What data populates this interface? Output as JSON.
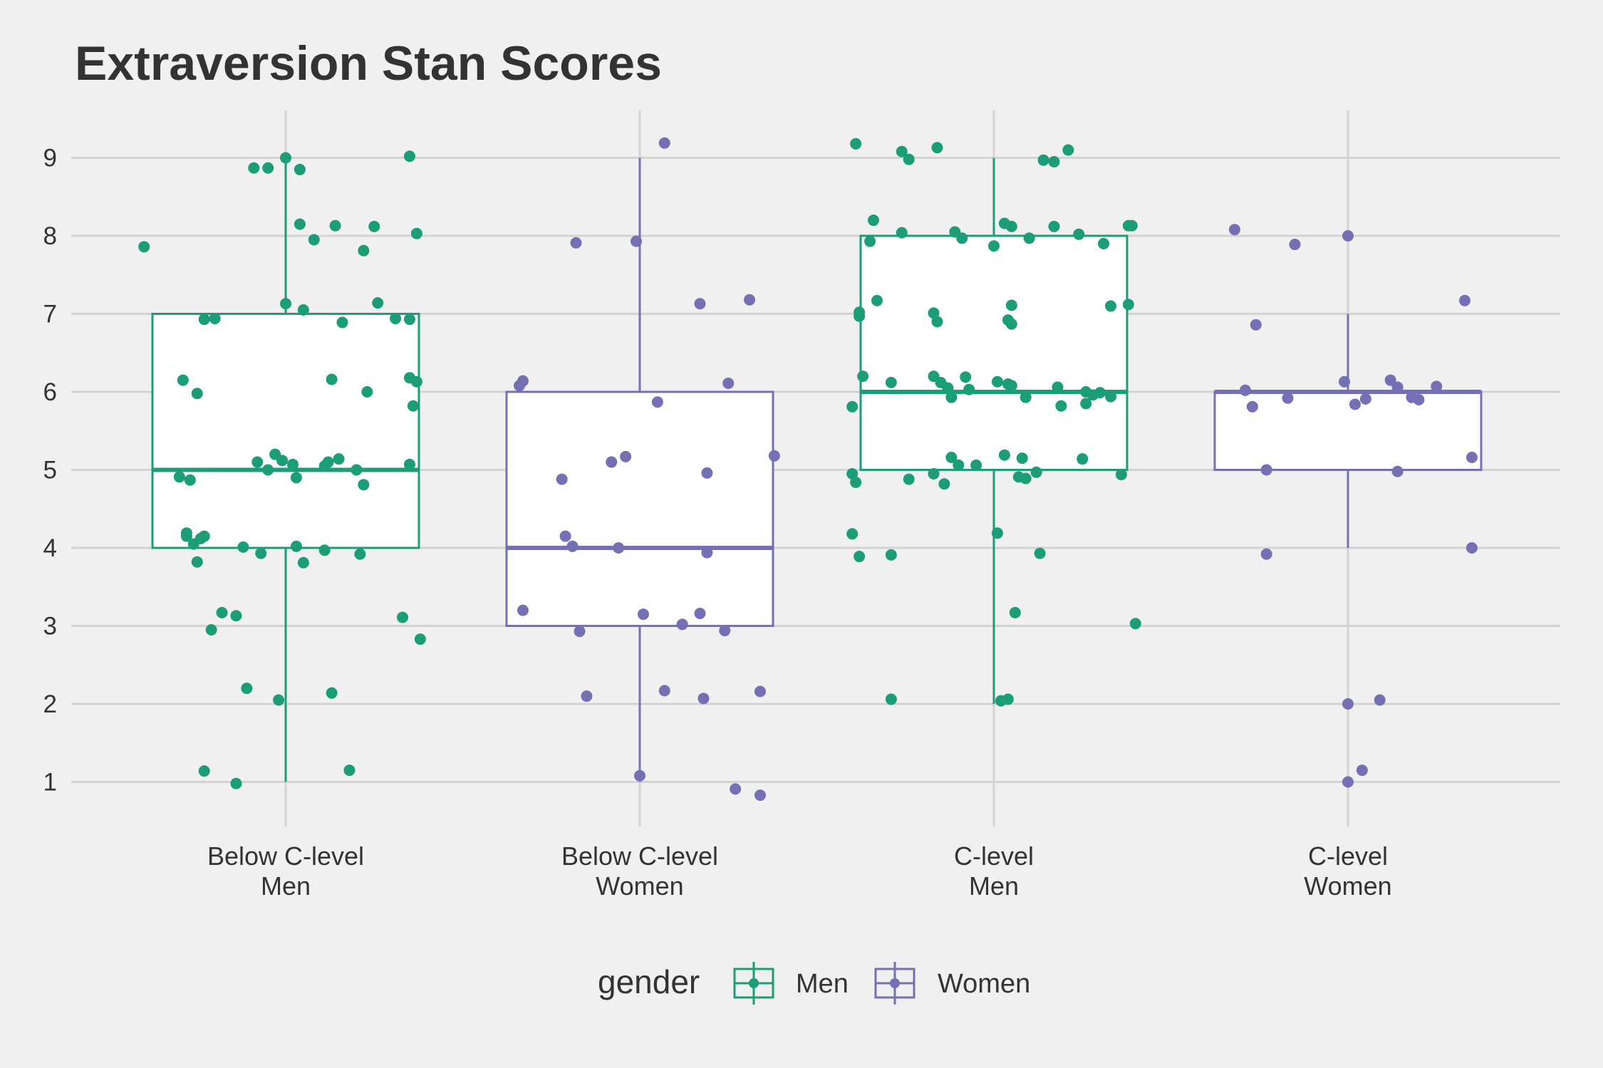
{
  "chart_data": {
    "type": "box",
    "title": "Extraversion Stan Scores",
    "xlabel": "",
    "ylabel": "",
    "ylim": [
      0.5,
      9.8
    ],
    "y_ticks": [
      1,
      2,
      3,
      4,
      5,
      6,
      7,
      8,
      9
    ],
    "grid": true,
    "legend": {
      "title": "gender",
      "placement": "bottom",
      "entries": [
        {
          "name": "Men",
          "color": "#1b9e77"
        },
        {
          "name": "Women",
          "color": "#7570b3"
        }
      ]
    },
    "categories": [
      {
        "label_line1": "Below C-level",
        "label_line2": "Men",
        "gender": "Men",
        "color": "#1b9e77",
        "box": {
          "min": 1,
          "q1": 4,
          "median": 5,
          "q3": 7,
          "max": 9
        },
        "points": [
          {
            "x": 1.0,
            "y": 9.0
          },
          {
            "x": 0.95,
            "y": 8.87
          },
          {
            "x": 0.91,
            "y": 8.87
          },
          {
            "x": 1.04,
            "y": 8.85
          },
          {
            "x": 1.35,
            "y": 9.02
          },
          {
            "x": 0.6,
            "y": 7.86
          },
          {
            "x": 1.04,
            "y": 8.15
          },
          {
            "x": 1.08,
            "y": 7.95
          },
          {
            "x": 1.14,
            "y": 8.13
          },
          {
            "x": 1.25,
            "y": 8.12
          },
          {
            "x": 1.37,
            "y": 8.03
          },
          {
            "x": 1.22,
            "y": 7.81
          },
          {
            "x": 1.0,
            "y": 7.13
          },
          {
            "x": 1.05,
            "y": 7.05
          },
          {
            "x": 1.26,
            "y": 7.14
          },
          {
            "x": 0.77,
            "y": 6.93
          },
          {
            "x": 0.8,
            "y": 6.94
          },
          {
            "x": 1.16,
            "y": 6.89
          },
          {
            "x": 1.31,
            "y": 6.94
          },
          {
            "x": 1.35,
            "y": 6.93
          },
          {
            "x": 0.71,
            "y": 6.15
          },
          {
            "x": 0.75,
            "y": 5.98
          },
          {
            "x": 1.13,
            "y": 6.16
          },
          {
            "x": 1.23,
            "y": 6.0
          },
          {
            "x": 1.35,
            "y": 6.18
          },
          {
            "x": 1.37,
            "y": 6.13
          },
          {
            "x": 1.36,
            "y": 5.82
          },
          {
            "x": 0.92,
            "y": 5.1
          },
          {
            "x": 0.95,
            "y": 5.0
          },
          {
            "x": 0.97,
            "y": 5.2
          },
          {
            "x": 0.99,
            "y": 5.12
          },
          {
            "x": 1.02,
            "y": 5.07
          },
          {
            "x": 1.03,
            "y": 4.9
          },
          {
            "x": 1.11,
            "y": 5.05
          },
          {
            "x": 1.12,
            "y": 5.1
          },
          {
            "x": 1.15,
            "y": 5.14
          },
          {
            "x": 1.2,
            "y": 5.0
          },
          {
            "x": 1.22,
            "y": 4.81
          },
          {
            "x": 1.35,
            "y": 5.07
          },
          {
            "x": 0.7,
            "y": 4.91
          },
          {
            "x": 0.73,
            "y": 4.87
          },
          {
            "x": 0.72,
            "y": 4.19
          },
          {
            "x": 0.72,
            "y": 4.15
          },
          {
            "x": 0.74,
            "y": 4.05
          },
          {
            "x": 0.76,
            "y": 4.12
          },
          {
            "x": 0.77,
            "y": 4.15
          },
          {
            "x": 0.75,
            "y": 3.82
          },
          {
            "x": 0.88,
            "y": 4.01
          },
          {
            "x": 0.93,
            "y": 3.93
          },
          {
            "x": 1.03,
            "y": 4.02
          },
          {
            "x": 1.05,
            "y": 3.81
          },
          {
            "x": 1.11,
            "y": 3.97
          },
          {
            "x": 1.21,
            "y": 3.92
          },
          {
            "x": 0.82,
            "y": 3.17
          },
          {
            "x": 0.86,
            "y": 3.13
          },
          {
            "x": 0.79,
            "y": 2.95
          },
          {
            "x": 1.33,
            "y": 3.11
          },
          {
            "x": 1.38,
            "y": 2.83
          },
          {
            "x": 0.89,
            "y": 2.2
          },
          {
            "x": 0.98,
            "y": 2.05
          },
          {
            "x": 1.13,
            "y": 2.14
          },
          {
            "x": 0.77,
            "y": 1.14
          },
          {
            "x": 0.86,
            "y": 0.98
          },
          {
            "x": 1.18,
            "y": 1.15
          }
        ]
      },
      {
        "label_line1": "Below C-level",
        "label_line2": "Women",
        "gender": "Women",
        "color": "#7570b3",
        "box": {
          "min": 1,
          "q1": 3,
          "median": 4,
          "q3": 6,
          "max": 9
        },
        "points": [
          {
            "x": 2.07,
            "y": 9.19
          },
          {
            "x": 1.82,
            "y": 7.91
          },
          {
            "x": 1.99,
            "y": 7.93
          },
          {
            "x": 2.17,
            "y": 7.13
          },
          {
            "x": 2.31,
            "y": 7.18
          },
          {
            "x": 1.66,
            "y": 6.08
          },
          {
            "x": 1.67,
            "y": 6.14
          },
          {
            "x": 2.25,
            "y": 6.11
          },
          {
            "x": 2.05,
            "y": 5.87
          },
          {
            "x": 1.78,
            "y": 4.88
          },
          {
            "x": 1.92,
            "y": 5.1
          },
          {
            "x": 1.96,
            "y": 5.17
          },
          {
            "x": 2.19,
            "y": 4.96
          },
          {
            "x": 2.38,
            "y": 5.18
          },
          {
            "x": 1.79,
            "y": 4.15
          },
          {
            "x": 1.81,
            "y": 4.02
          },
          {
            "x": 1.94,
            "y": 4.0
          },
          {
            "x": 2.19,
            "y": 3.94
          },
          {
            "x": 1.67,
            "y": 3.2
          },
          {
            "x": 1.83,
            "y": 2.93
          },
          {
            "x": 2.01,
            "y": 3.15
          },
          {
            "x": 2.12,
            "y": 3.02
          },
          {
            "x": 2.17,
            "y": 3.16
          },
          {
            "x": 2.24,
            "y": 2.94
          },
          {
            "x": 1.85,
            "y": 2.1
          },
          {
            "x": 2.07,
            "y": 2.17
          },
          {
            "x": 2.18,
            "y": 2.07
          },
          {
            "x": 2.34,
            "y": 2.16
          },
          {
            "x": 2.0,
            "y": 1.08
          },
          {
            "x": 2.27,
            "y": 0.91
          },
          {
            "x": 2.34,
            "y": 0.83
          }
        ]
      },
      {
        "label_line1": "C-level",
        "label_line2": "Men",
        "gender": "Men",
        "color": "#1b9e77",
        "box": {
          "min": 2,
          "q1": 5,
          "median": 6,
          "q3": 8,
          "max": 9
        },
        "points": [
          {
            "x": 2.61,
            "y": 9.18
          },
          {
            "x": 2.74,
            "y": 9.08
          },
          {
            "x": 2.76,
            "y": 8.98
          },
          {
            "x": 2.84,
            "y": 9.13
          },
          {
            "x": 3.14,
            "y": 8.97
          },
          {
            "x": 3.17,
            "y": 8.95
          },
          {
            "x": 3.21,
            "y": 9.1
          },
          {
            "x": 2.66,
            "y": 8.2
          },
          {
            "x": 2.65,
            "y": 7.93
          },
          {
            "x": 2.74,
            "y": 8.04
          },
          {
            "x": 2.89,
            "y": 8.05
          },
          {
            "x": 2.91,
            "y": 7.97
          },
          {
            "x": 3.0,
            "y": 7.87
          },
          {
            "x": 3.03,
            "y": 8.16
          },
          {
            "x": 3.05,
            "y": 8.12
          },
          {
            "x": 3.1,
            "y": 7.97
          },
          {
            "x": 3.17,
            "y": 8.12
          },
          {
            "x": 3.24,
            "y": 8.02
          },
          {
            "x": 3.31,
            "y": 7.9
          },
          {
            "x": 3.38,
            "y": 8.13
          },
          {
            "x": 3.39,
            "y": 8.13
          },
          {
            "x": 2.67,
            "y": 7.17
          },
          {
            "x": 2.62,
            "y": 6.97
          },
          {
            "x": 2.62,
            "y": 7.02
          },
          {
            "x": 2.83,
            "y": 7.01
          },
          {
            "x": 2.84,
            "y": 6.9
          },
          {
            "x": 3.04,
            "y": 6.92
          },
          {
            "x": 3.05,
            "y": 6.87
          },
          {
            "x": 3.05,
            "y": 7.11
          },
          {
            "x": 3.33,
            "y": 7.1
          },
          {
            "x": 3.38,
            "y": 7.12
          },
          {
            "x": 2.63,
            "y": 6.2
          },
          {
            "x": 2.6,
            "y": 5.81
          },
          {
            "x": 2.71,
            "y": 6.12
          },
          {
            "x": 2.83,
            "y": 6.2
          },
          {
            "x": 2.85,
            "y": 6.12
          },
          {
            "x": 2.87,
            "y": 6.05
          },
          {
            "x": 2.88,
            "y": 5.93
          },
          {
            "x": 2.92,
            "y": 6.19
          },
          {
            "x": 2.93,
            "y": 6.03
          },
          {
            "x": 3.01,
            "y": 6.13
          },
          {
            "x": 3.04,
            "y": 6.1
          },
          {
            "x": 3.05,
            "y": 6.08
          },
          {
            "x": 3.09,
            "y": 5.93
          },
          {
            "x": 3.18,
            "y": 6.06
          },
          {
            "x": 3.19,
            "y": 5.82
          },
          {
            "x": 3.26,
            "y": 6.0
          },
          {
            "x": 3.26,
            "y": 5.85
          },
          {
            "x": 3.28,
            "y": 5.96
          },
          {
            "x": 3.3,
            "y": 5.99
          },
          {
            "x": 3.33,
            "y": 5.94
          },
          {
            "x": 2.6,
            "y": 4.95
          },
          {
            "x": 2.61,
            "y": 4.84
          },
          {
            "x": 2.76,
            "y": 4.88
          },
          {
            "x": 2.83,
            "y": 4.95
          },
          {
            "x": 2.86,
            "y": 4.82
          },
          {
            "x": 2.88,
            "y": 5.16
          },
          {
            "x": 2.9,
            "y": 5.06
          },
          {
            "x": 2.95,
            "y": 5.06
          },
          {
            "x": 3.03,
            "y": 5.19
          },
          {
            "x": 3.07,
            "y": 4.91
          },
          {
            "x": 3.08,
            "y": 5.15
          },
          {
            "x": 3.09,
            "y": 4.89
          },
          {
            "x": 3.12,
            "y": 4.97
          },
          {
            "x": 3.25,
            "y": 5.14
          },
          {
            "x": 3.36,
            "y": 4.94
          },
          {
            "x": 2.6,
            "y": 4.18
          },
          {
            "x": 2.62,
            "y": 3.89
          },
          {
            "x": 2.71,
            "y": 3.91
          },
          {
            "x": 3.01,
            "y": 4.19
          },
          {
            "x": 3.13,
            "y": 3.93
          },
          {
            "x": 3.06,
            "y": 3.17
          },
          {
            "x": 3.4,
            "y": 3.03
          },
          {
            "x": 2.71,
            "y": 2.06
          },
          {
            "x": 3.02,
            "y": 2.04
          },
          {
            "x": 3.04,
            "y": 2.06
          }
        ]
      },
      {
        "label_line1": "C-level",
        "label_line2": "Women",
        "gender": "Women",
        "color": "#7570b3",
        "box": {
          "min": 4,
          "q1": 5,
          "median": 6,
          "q3": 6,
          "max": 7
        },
        "points": [
          {
            "x": 3.68,
            "y": 8.08
          },
          {
            "x": 3.85,
            "y": 7.89
          },
          {
            "x": 4.0,
            "y": 8.0
          },
          {
            "x": 3.74,
            "y": 6.86
          },
          {
            "x": 4.33,
            "y": 7.17
          },
          {
            "x": 3.71,
            "y": 6.02
          },
          {
            "x": 3.73,
            "y": 5.81
          },
          {
            "x": 3.83,
            "y": 5.92
          },
          {
            "x": 3.99,
            "y": 6.13
          },
          {
            "x": 4.02,
            "y": 5.84
          },
          {
            "x": 4.05,
            "y": 5.91
          },
          {
            "x": 4.12,
            "y": 6.15
          },
          {
            "x": 4.14,
            "y": 6.06
          },
          {
            "x": 4.18,
            "y": 5.93
          },
          {
            "x": 4.2,
            "y": 5.9
          },
          {
            "x": 4.25,
            "y": 6.07
          },
          {
            "x": 3.77,
            "y": 5.0
          },
          {
            "x": 4.14,
            "y": 4.98
          },
          {
            "x": 4.35,
            "y": 5.16
          },
          {
            "x": 3.77,
            "y": 3.92
          },
          {
            "x": 4.35,
            "y": 4.0
          },
          {
            "x": 4.0,
            "y": 2.0
          },
          {
            "x": 4.09,
            "y": 2.05
          },
          {
            "x": 4.0,
            "y": 1.0
          },
          {
            "x": 4.04,
            "y": 1.15
          }
        ]
      }
    ]
  }
}
